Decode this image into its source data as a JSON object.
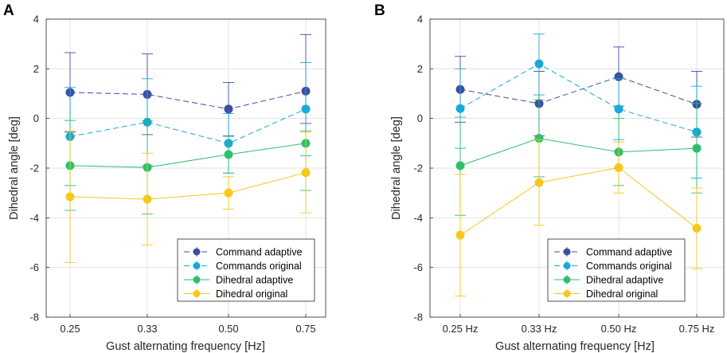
{
  "chart_data": [
    {
      "type": "line",
      "panel": "A",
      "categories": [
        "0.25",
        "0.33",
        "0.50",
        "0.75"
      ],
      "xlabel": "Gust alternating frequency [Hz]",
      "ylabel": "Dihedral angle [deg]",
      "ylim": [
        -8,
        4
      ],
      "yticks": [
        -8,
        -6,
        -4,
        -2,
        0,
        2,
        4
      ],
      "grid": true,
      "legend_position": "bottom-right",
      "series": [
        {
          "name": "Command adaptive",
          "color": "#3c4fa1",
          "dash": "dashed",
          "values": [
            1.05,
            0.97,
            0.38,
            1.1
          ],
          "err_low": [
            -0.55,
            -0.65,
            -0.7,
            -0.2
          ],
          "err_high": [
            2.65,
            2.6,
            1.45,
            3.38
          ]
        },
        {
          "name": "Commands original",
          "color": "#18a9d8",
          "dash": "dashed",
          "values": [
            -0.73,
            -0.15,
            -1.0,
            0.38
          ],
          "err_low": [
            -2.7,
            -1.9,
            -2.2,
            -1.5
          ],
          "err_high": [
            1.25,
            1.6,
            0.2,
            2.25
          ]
        },
        {
          "name": "Dihedral adaptive",
          "color": "#2dbf6c",
          "dash": "solid",
          "values": [
            -1.9,
            -1.97,
            -1.45,
            -1.0
          ],
          "err_low": [
            -3.7,
            -3.85,
            -2.2,
            -2.9
          ],
          "err_high": [
            -0.08,
            -0.1,
            -0.72,
            -0.5
          ]
        },
        {
          "name": "Dihedral original",
          "color": "#f5c81e",
          "dash": "solid",
          "values": [
            -3.15,
            -3.25,
            -3.0,
            -2.18
          ],
          "err_low": [
            -5.8,
            -5.1,
            -3.65,
            -3.8
          ],
          "err_high": [
            -0.5,
            -1.4,
            -2.35,
            -0.55
          ]
        }
      ]
    },
    {
      "type": "line",
      "panel": "B",
      "categories": [
        "0.25 Hz",
        "0.33 Hz",
        "0.50 Hz",
        "0.75 Hz"
      ],
      "xlabel": "Gust alternating frequency [Hz]",
      "ylabel": "Dihedral angle [deg]",
      "ylim": [
        -8,
        4
      ],
      "yticks": [
        -8,
        -6,
        -4,
        -2,
        0,
        2,
        4
      ],
      "grid": true,
      "legend_position": "bottom-right",
      "series": [
        {
          "name": "Command adaptive",
          "color": "#3c4fa1",
          "dash": "dashed",
          "values": [
            1.17,
            0.6,
            1.68,
            0.57
          ],
          "err_low": [
            -0.15,
            -0.7,
            0.5,
            -0.75
          ],
          "err_high": [
            2.5,
            1.9,
            2.88,
            1.9
          ]
        },
        {
          "name": "Commands original",
          "color": "#18a9d8",
          "dash": "dashed",
          "values": [
            0.4,
            2.2,
            0.38,
            -0.55
          ],
          "err_low": [
            -1.2,
            0.95,
            -0.85,
            -2.4
          ],
          "err_high": [
            2.0,
            3.4,
            1.6,
            1.3
          ]
        },
        {
          "name": "Dihedral adaptive",
          "color": "#2dbf6c",
          "dash": "solid",
          "values": [
            -1.9,
            -0.8,
            -1.35,
            -1.2
          ],
          "err_low": [
            -3.9,
            -2.35,
            -2.7,
            -3.0
          ],
          "err_high": [
            0.05,
            0.75,
            0.0,
            0.6
          ]
        },
        {
          "name": "Dihedral original",
          "color": "#f5c81e",
          "dash": "solid",
          "values": [
            -4.7,
            -2.58,
            -1.98,
            -4.42
          ],
          "err_low": [
            -7.15,
            -4.3,
            -3.0,
            -6.05
          ],
          "err_high": [
            -2.25,
            -0.85,
            -0.95,
            -2.8
          ]
        }
      ]
    }
  ]
}
